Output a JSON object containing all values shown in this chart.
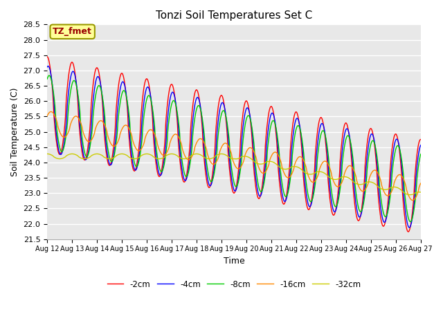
{
  "title": "Tonzi Soil Temperatures Set C",
  "xlabel": "Time",
  "ylabel": "Soil Temperature (C)",
  "ylim": [
    21.5,
    28.5
  ],
  "series_colors": [
    "#ff0000",
    "#0000ff",
    "#00cc00",
    "#ff8800",
    "#cccc00"
  ],
  "series_labels": [
    "-2cm",
    "-4cm",
    "-8cm",
    "-16cm",
    "-32cm"
  ],
  "xtick_labels": [
    "Aug 12",
    "Aug 13",
    "Aug 14",
    "Aug 15",
    "Aug 16",
    "Aug 17",
    "Aug 18",
    "Aug 19",
    "Aug 20",
    "Aug 21",
    "Aug 22",
    "Aug 23",
    "Aug 24",
    "Aug 25",
    "Aug 26",
    "Aug 27"
  ],
  "annotation_text": "TZ_fmet",
  "annotation_box_color": "#ffff99",
  "annotation_box_edge": "#999900",
  "background_color": "#e8e8e8",
  "grid_color": "#ffffff",
  "days": 15
}
